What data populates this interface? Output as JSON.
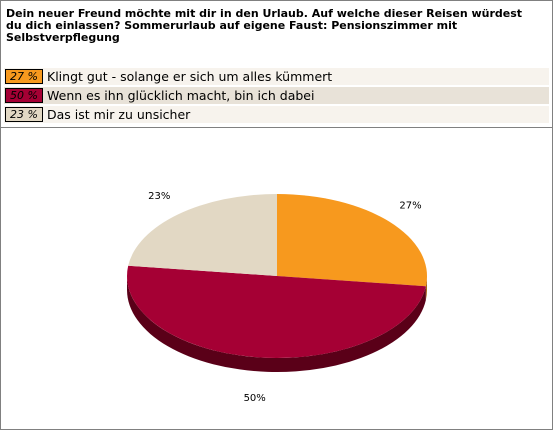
{
  "question": "Dein neuer Freund möchte mit dir in den Urlaub. Auf welche dieser Reisen würdest du dich einlassen? Sommerurlaub auf eigene Faust: Pensionszimmer mit Selbstverpflegung",
  "answers": [
    {
      "pct_label": "27 %",
      "text": "Klingt gut - solange er sich um alles kümmert",
      "color": "#f7991e"
    },
    {
      "pct_label": "50 %",
      "text": "Wenn es ihn glücklich macht, bin ich dabei",
      "color": "#a50034"
    },
    {
      "pct_label": "23 %",
      "text": "Das ist mir zu unsicher",
      "color": "#e2d8c4"
    }
  ],
  "chart_data": {
    "type": "pie",
    "style": "3d",
    "categories": [
      "Klingt gut - solange er sich um alles kümmert",
      "Wenn es ihn glücklich macht, bin ich dabei",
      "Das ist mir zu unsicher"
    ],
    "values": [
      27,
      50,
      23
    ],
    "labels": [
      "27%",
      "50%",
      "23%"
    ],
    "colors": [
      "#f7991e",
      "#a50034",
      "#e2d8c4"
    ],
    "side_colors": [
      "#a8651a",
      "#5a0018",
      "#8f8573"
    ]
  }
}
